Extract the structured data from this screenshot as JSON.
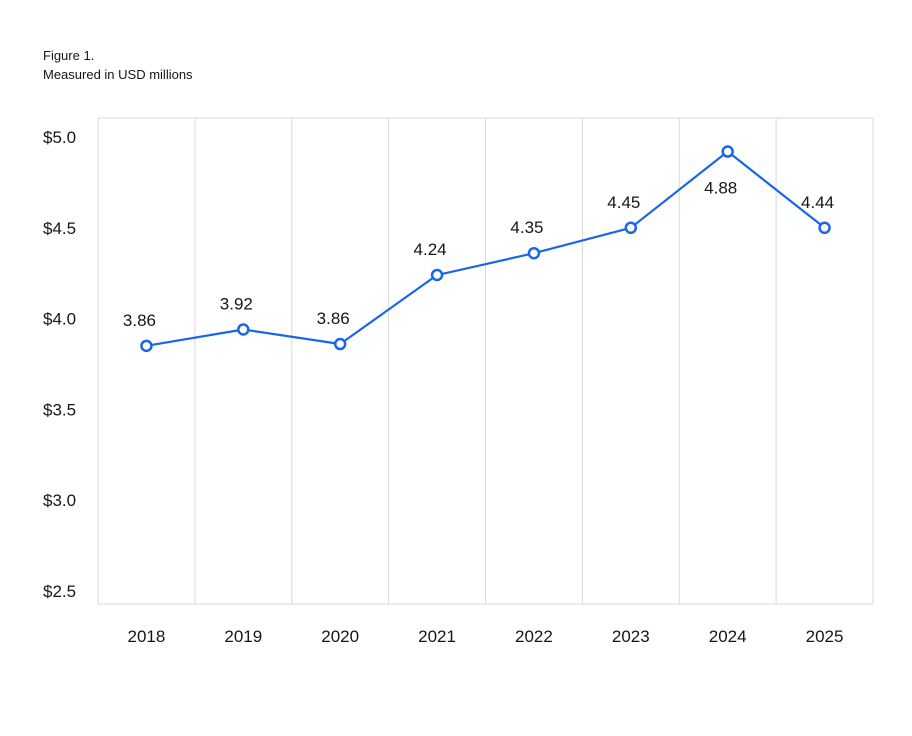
{
  "figure": {
    "label": "Figure 1.",
    "subtitle": "Measured in USD millions"
  },
  "chart_data": {
    "type": "line",
    "categories": [
      "2018",
      "2019",
      "2020",
      "2021",
      "2022",
      "2023",
      "2024",
      "2025"
    ],
    "series": [
      {
        "values": [
          3.86,
          3.92,
          3.86,
          4.24,
          4.35,
          4.45,
          4.88,
          4.44
        ],
        "data_labels": [
          "3.86",
          "3.92",
          "3.86",
          "4.24",
          "4.35",
          "4.45",
          "4.88",
          "4.44"
        ],
        "plotted_values": [
          3.85,
          3.94,
          3.86,
          4.24,
          4.36,
          4.5,
          4.92,
          4.5
        ],
        "color": "#1a66e8"
      }
    ],
    "ylim": [
      2.5,
      5.0
    ],
    "yticks": [
      2.5,
      3.0,
      3.5,
      4.0,
      4.5,
      5.0
    ],
    "ytick_labels": [
      "$2.5",
      "$3.0",
      "$3.5",
      "$4.0",
      "$4.5",
      "$5.0"
    ],
    "grid": "vertical",
    "legend": "none",
    "gridline_color": "#d9d9d9"
  }
}
